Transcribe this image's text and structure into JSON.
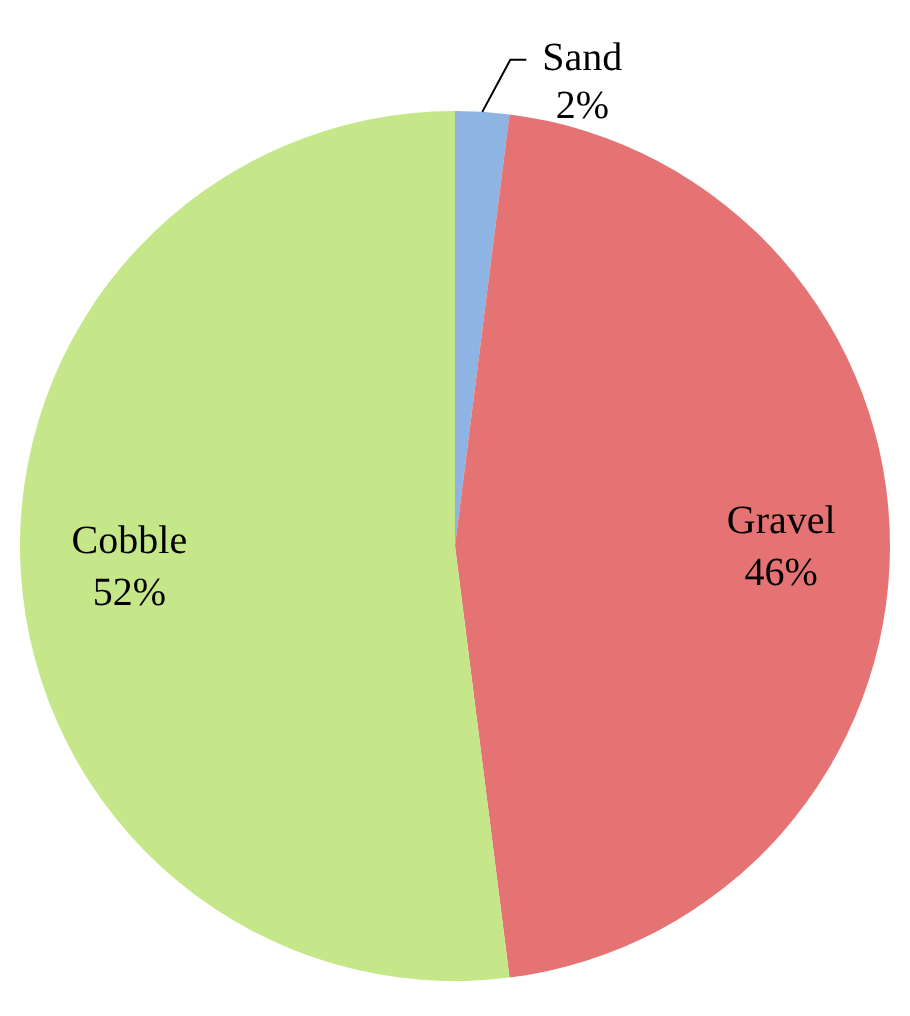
{
  "chart_data": {
    "type": "pie",
    "categories": [
      "Sand",
      "Gravel",
      "Cobble"
    ],
    "values": [
      2,
      46,
      52
    ],
    "value_labels": [
      "2%",
      "46%",
      "52%"
    ],
    "colors": [
      "#8db4e2",
      "#e57373",
      "#c6e68a"
    ]
  }
}
